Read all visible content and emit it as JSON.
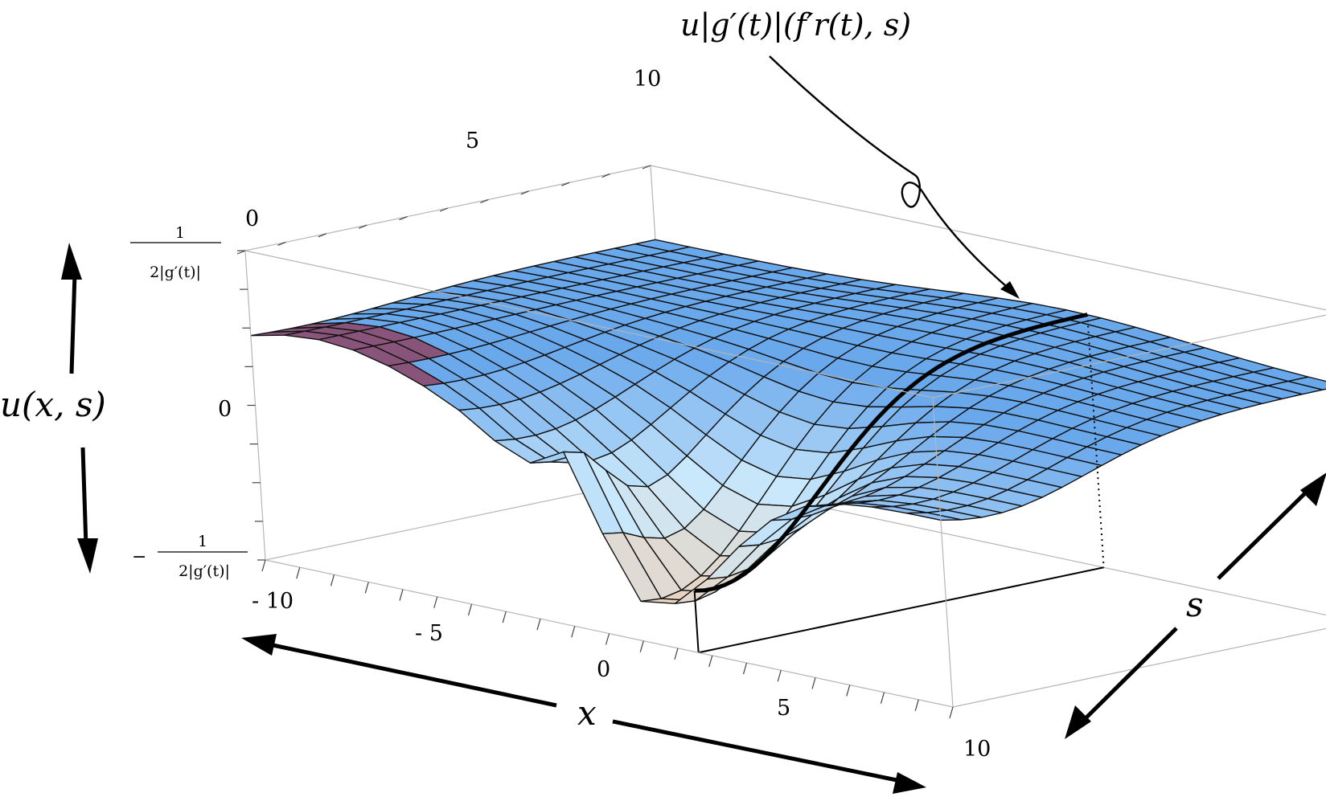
{
  "chart_data": {
    "type": "surface",
    "x_label": "x",
    "s_label": "s",
    "u_label": "u(x, s)",
    "annotation": "u|g′(t)|(f′r(t), s)",
    "x_ticks": [
      "- 10",
      "- 5",
      "0",
      "5",
      "10"
    ],
    "s_ticks": [
      "0",
      "5",
      "10"
    ],
    "u_ticks": [
      "-1/(2|g′(t)|)",
      "0",
      "1/(2|g′(t)|)"
    ],
    "u_tick_upper": {
      "num": "1",
      "den": "2|g′(t)|"
    },
    "u_tick_zero": "0",
    "u_tick_lower": {
      "sign": "−",
      "num": "1",
      "den": "2|g′(t)|"
    },
    "xlim": [
      -10,
      10
    ],
    "slim": [
      0,
      10
    ],
    "ulim": [
      -1,
      1
    ],
    "grid_divisions": {
      "x": 20,
      "s": 20
    },
    "highlighted_x": 2.6,
    "colors": {
      "surface_far": "#6aa8ec",
      "surface_mid": "#cbe9fb",
      "surface_low": "#f7c9a4",
      "peak": "#7d3a63",
      "box": "#b5b5b5"
    }
  }
}
